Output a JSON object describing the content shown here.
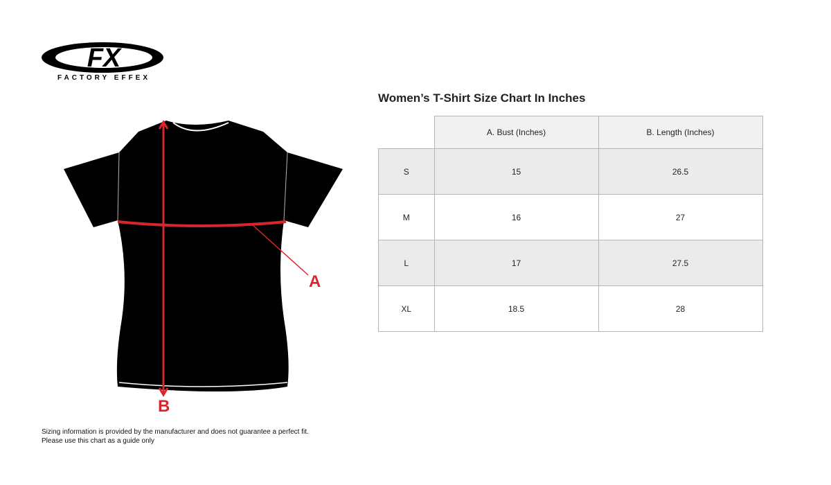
{
  "logo": {
    "text": "FX",
    "subtitle": "FACTORY EFFEX"
  },
  "diagram": {
    "label_a": "A",
    "label_b": "B",
    "accent_color": "#d9262c"
  },
  "chart_title": "Women’s T-Shirt Size Chart In Inches",
  "table": {
    "headers": [
      "",
      "A. Bust (Inches)",
      "B. Length (Inches)"
    ],
    "rows": [
      {
        "size": "S",
        "bust": "15",
        "length": "26.5"
      },
      {
        "size": "M",
        "bust": "16",
        "length": "27"
      },
      {
        "size": "L",
        "bust": "17",
        "length": "27.5"
      },
      {
        "size": "XL",
        "bust": "18.5",
        "length": "28"
      }
    ]
  },
  "disclaimer": {
    "line1": "Sizing information is provided by the manufacturer and does not guarantee a perfect fit.",
    "line2": "Please use this chart as a guide only"
  }
}
